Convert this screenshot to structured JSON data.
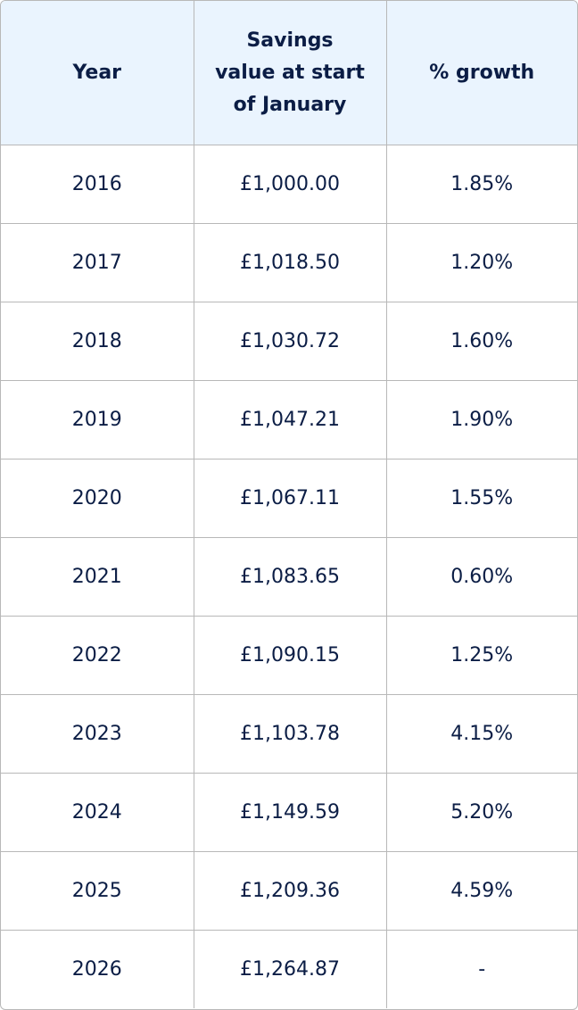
{
  "table": {
    "header": [
      "Year",
      "Savings value at start of January",
      "% growth"
    ],
    "rows": [
      [
        "2016",
        "£1,000.00",
        "1.85%"
      ],
      [
        "2017",
        "£1,018.50",
        "1.20%"
      ],
      [
        "2018",
        "£1,030.72",
        "1.60%"
      ],
      [
        "2019",
        "£1,047.21",
        "1.90%"
      ],
      [
        "2020",
        "£1,067.11",
        "1.55%"
      ],
      [
        "2021",
        "£1,083.65",
        "0.60%"
      ],
      [
        "2022",
        "£1,090.15",
        "1.25%"
      ],
      [
        "2023",
        "£1,103.78",
        "4.15%"
      ],
      [
        "2024",
        "£1,149.59",
        "5.20%"
      ],
      [
        "2025",
        "£1,209.36",
        "4.59%"
      ],
      [
        "2026",
        "£1,264.87",
        "-"
      ]
    ]
  }
}
